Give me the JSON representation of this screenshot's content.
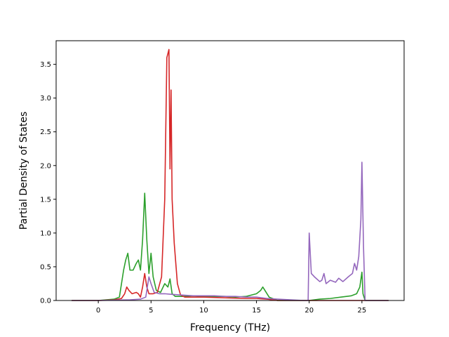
{
  "chart_data": {
    "type": "line",
    "title": "",
    "xlabel": "Frequency (THz)",
    "ylabel": "Partial Density of States",
    "xlim": [
      -4,
      29
    ],
    "ylim": [
      0,
      3.85
    ],
    "xticks": [
      0,
      5,
      10,
      15,
      20,
      25
    ],
    "yticks": [
      0.0,
      0.5,
      1.0,
      1.5,
      2.0,
      2.5,
      3.0,
      3.5
    ],
    "xtick_labels": [
      "0",
      "5",
      "10",
      "15",
      "20",
      "25"
    ],
    "ytick_labels": [
      "0.0",
      "0.5",
      "1.0",
      "1.5",
      "2.0",
      "2.5",
      "3.0",
      "3.5"
    ],
    "grid": false,
    "legend": null,
    "series": [
      {
        "color": "#2ca02c",
        "x": [
          -2.5,
          0,
          1.5,
          2.0,
          2.4,
          2.6,
          2.8,
          3.0,
          3.3,
          3.6,
          3.8,
          4.0,
          4.2,
          4.4,
          4.6,
          4.8,
          5.0,
          5.2,
          5.5,
          5.9,
          6.3,
          6.6,
          6.8,
          7.0,
          7.3,
          8,
          9,
          10,
          11,
          12,
          13,
          14,
          15.0,
          15.4,
          15.6,
          15.8,
          16.2,
          17,
          20,
          21,
          22,
          23,
          24,
          24.5,
          24.8,
          25.0,
          25.1,
          25.3,
          27.5
        ],
        "y": [
          0,
          0,
          0.02,
          0.05,
          0.45,
          0.6,
          0.7,
          0.45,
          0.45,
          0.55,
          0.6,
          0.45,
          0.9,
          1.59,
          0.9,
          0.4,
          0.7,
          0.35,
          0.15,
          0.12,
          0.25,
          0.2,
          0.32,
          0.1,
          0.06,
          0.06,
          0.07,
          0.06,
          0.06,
          0.06,
          0.05,
          0.06,
          0.1,
          0.15,
          0.2,
          0.15,
          0.05,
          0.0,
          0.0,
          0.02,
          0.03,
          0.05,
          0.07,
          0.1,
          0.2,
          0.42,
          0.1,
          0.0,
          0.0
        ]
      },
      {
        "color": "#d62728",
        "x": [
          -2.5,
          0,
          1.5,
          2.2,
          2.5,
          2.7,
          2.9,
          3.2,
          3.6,
          3.8,
          4.0,
          4.2,
          4.4,
          4.6,
          4.8,
          5.2,
          5.6,
          6.0,
          6.3,
          6.5,
          6.7,
          6.8,
          6.9,
          7.0,
          7.2,
          7.5,
          7.8,
          8.2,
          9,
          10,
          12,
          14,
          15,
          16,
          17,
          20,
          25,
          27.5
        ],
        "y": [
          0,
          0,
          0.01,
          0.03,
          0.1,
          0.2,
          0.15,
          0.1,
          0.12,
          0.1,
          0.05,
          0.2,
          0.4,
          0.2,
          0.1,
          0.1,
          0.12,
          0.35,
          1.5,
          3.6,
          3.72,
          1.95,
          3.12,
          1.5,
          0.85,
          0.25,
          0.08,
          0.05,
          0.05,
          0.05,
          0.04,
          0.03,
          0.03,
          0.02,
          0.0,
          0.0,
          0.0,
          0.0
        ]
      },
      {
        "color": "#9467bd",
        "x": [
          -2.5,
          0,
          3,
          4,
          4.5,
          4.8,
          5.0,
          5.3,
          5.8,
          6.3,
          7.0,
          8,
          9,
          10,
          11,
          12,
          13,
          14,
          15,
          16,
          17,
          19.5,
          19.9,
          20.0,
          20.2,
          20.5,
          21.0,
          21.2,
          21.4,
          21.6,
          22.0,
          22.5,
          22.8,
          23.2,
          23.7,
          24.1,
          24.3,
          24.5,
          24.7,
          24.9,
          25.0,
          25.15,
          25.3,
          27.5
        ],
        "y": [
          0,
          0,
          0.01,
          0.02,
          0.05,
          0.35,
          0.25,
          0.12,
          0.1,
          0.1,
          0.09,
          0.08,
          0.07,
          0.07,
          0.07,
          0.06,
          0.06,
          0.05,
          0.05,
          0.03,
          0.02,
          0.0,
          0.0,
          1.0,
          0.4,
          0.35,
          0.28,
          0.3,
          0.4,
          0.25,
          0.3,
          0.27,
          0.33,
          0.28,
          0.35,
          0.4,
          0.55,
          0.45,
          0.65,
          1.2,
          2.05,
          0.8,
          0.0,
          0.0
        ]
      }
    ]
  }
}
